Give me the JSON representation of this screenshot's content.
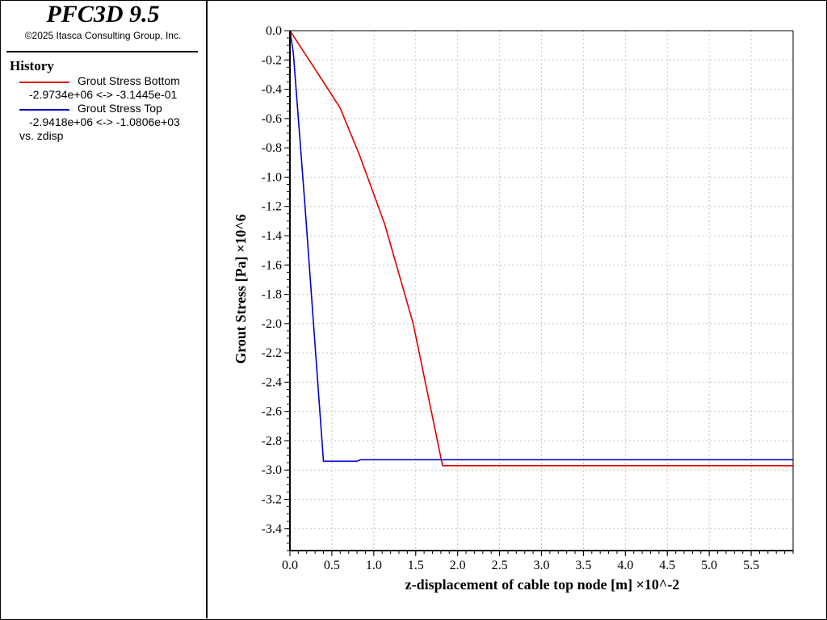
{
  "app": {
    "title": "PFC3D 9.5",
    "copyright": "©2025 Itasca Consulting Group, Inc."
  },
  "legend": {
    "heading": "History",
    "items": [
      {
        "name": "Grout Stress Bottom",
        "range": "-2.9734e+06 <-> -3.1445e-01",
        "color": "#e00000"
      },
      {
        "name": "Grout Stress Top",
        "range": "-2.9418e+06 <-> -1.0806e+03",
        "color": "#0000d0"
      }
    ],
    "vs": "vs. zdisp"
  },
  "chart_data": {
    "type": "line",
    "xlabel": "z-displacement of cable top node [m]  ×10^-2",
    "ylabel": "Grout Stress [Pa]  ×10^6",
    "xlim": [
      0,
      6.0
    ],
    "ylim": [
      -3.55,
      0
    ],
    "x_ticks": [
      "0.0",
      "0.5",
      "1.0",
      "1.5",
      "2.0",
      "2.5",
      "3.0",
      "3.5",
      "4.0",
      "4.5",
      "5.0",
      "5.5"
    ],
    "y_ticks": [
      "0.0",
      "-0.2",
      "-0.4",
      "-0.6",
      "-0.8",
      "-1.0",
      "-1.2",
      "-1.4",
      "-1.6",
      "-1.8",
      "-2.0",
      "-2.2",
      "-2.4",
      "-2.6",
      "-2.8",
      "-3.0",
      "-3.2",
      "-3.4"
    ],
    "grid": true,
    "series": [
      {
        "name": "Grout Stress Bottom",
        "color": "#e00000",
        "x": [
          0.0,
          0.4,
          0.6,
          0.83,
          1.13,
          1.47,
          1.82,
          6.0
        ],
        "y": [
          0.0,
          -0.35,
          -0.53,
          -0.85,
          -1.32,
          -2.0,
          -2.97,
          -2.97
        ]
      },
      {
        "name": "Grout Stress Top",
        "color": "#0000d0",
        "x": [
          0.0,
          0.04,
          0.18,
          0.4,
          0.8,
          0.84,
          6.0
        ],
        "y": [
          0.0,
          -0.15,
          -1.2,
          -2.94,
          -2.94,
          -2.93,
          -2.93
        ]
      }
    ]
  }
}
